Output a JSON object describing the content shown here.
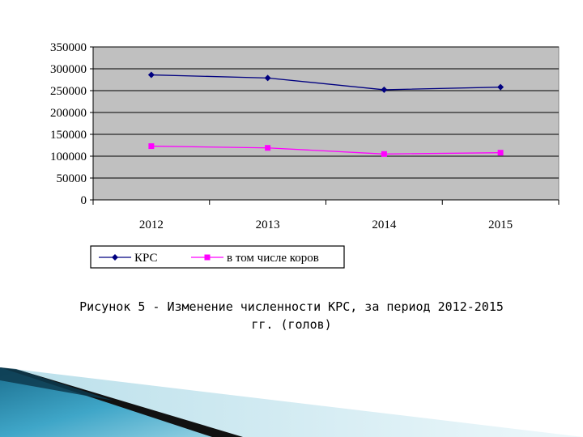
{
  "caption": {
    "line1": "Рисунок 5 - Изменение численности КРС, за период 2012-2015",
    "line2": "гг. (голов)"
  },
  "chart_data": {
    "type": "line",
    "categories": [
      "2012",
      "2013",
      "2014",
      "2015"
    ],
    "series": [
      {
        "name": "КРС",
        "values": [
          286000,
          279000,
          252000,
          258000
        ],
        "color": "#000080",
        "marker": "diamond"
      },
      {
        "name": "в том числе коров",
        "values": [
          123000,
          119000,
          105000,
          108000
        ],
        "color": "#ff00ff",
        "marker": "square"
      }
    ],
    "y_ticks": [
      "0",
      "50000",
      "100000",
      "150000",
      "200000",
      "250000",
      "300000",
      "350000"
    ],
    "ylim": [
      0,
      350000
    ],
    "grid": true,
    "legend_position": "bottom",
    "plot_background": "#c0c0c0"
  }
}
